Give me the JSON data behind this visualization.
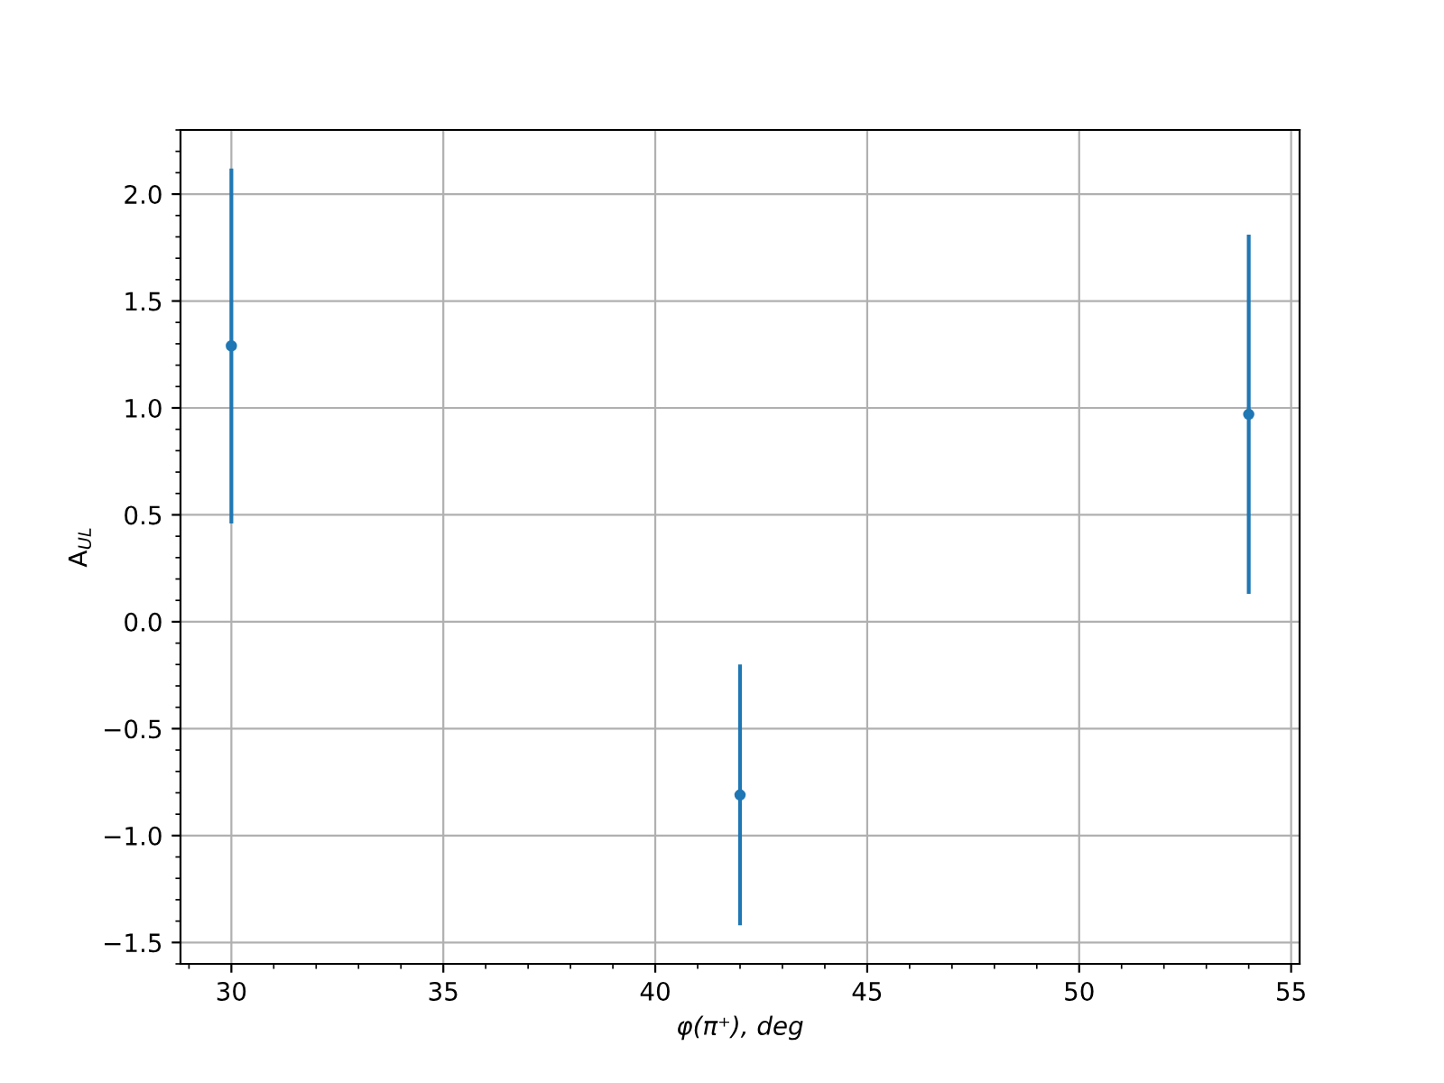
{
  "chart_data": {
    "type": "scatter",
    "xlabel": "φ(π⁺), deg",
    "ylabel": "A$_{UL}$",
    "x": [
      30,
      42,
      54
    ],
    "series": [
      {
        "color": "#1f77b4",
        "values": [
          1.29,
          -0.81,
          0.97
        ],
        "errors": [
          0.83,
          0.61,
          0.84
        ]
      }
    ],
    "marker": "circle",
    "xlim": [
      28.8,
      55.2
    ],
    "xticks": [
      30,
      35,
      40,
      45,
      50,
      55
    ],
    "ylim": [
      -1.6,
      2.3
    ],
    "yticks": [
      {
        "value": -1.5,
        "label": "−1.5"
      },
      {
        "value": -1,
        "label": "−1.0"
      },
      {
        "value": -0.5,
        "label": "−0.5"
      },
      {
        "value": 0,
        "label": "0.0"
      },
      0.5,
      {
        "value": 1,
        "label": "1.0"
      },
      1.5,
      {
        "value": 2,
        "label": "2.0"
      }
    ],
    "grid": true
  }
}
